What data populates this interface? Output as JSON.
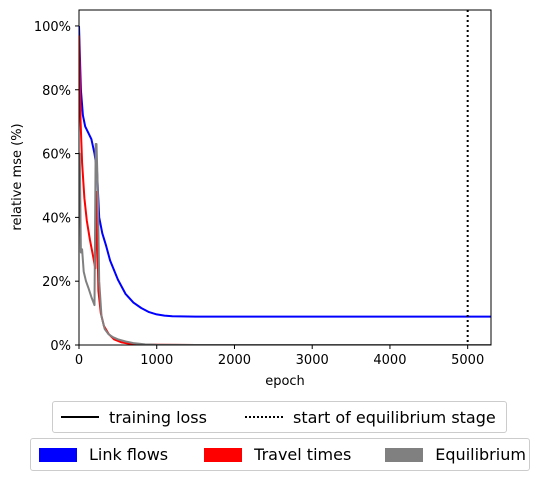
{
  "chart_data": {
    "type": "line",
    "title": "",
    "xlabel": "epoch",
    "ylabel": "relative mse (%)",
    "xlim": [
      0,
      5300
    ],
    "ylim": [
      0,
      105
    ],
    "xticks": [
      0,
      1000,
      2000,
      3000,
      4000,
      5000
    ],
    "xtick_labels": [
      "0",
      "1000",
      "2000",
      "3000",
      "4000",
      "5000"
    ],
    "yticks": [
      0,
      20,
      40,
      60,
      80,
      100
    ],
    "ytick_labels": [
      "0%",
      "20%",
      "40%",
      "60%",
      "80%",
      "100%"
    ],
    "grid": false,
    "vline": {
      "x": 5000,
      "style": "dotted",
      "color": "#000000"
    },
    "series": [
      {
        "name": "Link flows",
        "color": "#0000ff",
        "x": [
          0,
          25,
          50,
          80,
          120,
          160,
          200,
          230,
          260,
          300,
          350,
          400,
          500,
          600,
          700,
          800,
          900,
          1000,
          1100,
          1200,
          1500,
          2000,
          3000,
          4000,
          5000,
          5300
        ],
        "y": [
          100,
          80,
          72,
          68.5,
          66.5,
          64.5,
          60,
          55,
          40,
          35,
          31,
          26.5,
          20.5,
          16,
          13.3,
          11.6,
          10.3,
          9.6,
          9.2,
          9.0,
          8.9,
          8.9,
          8.9,
          8.9,
          8.9,
          8.9
        ]
      },
      {
        "name": "Travel times",
        "color": "#ff0000",
        "x": [
          0,
          20,
          40,
          70,
          100,
          140,
          180,
          210,
          225,
          250,
          280,
          320,
          380,
          450,
          550,
          650,
          800,
          1000,
          1500,
          2000,
          5300
        ],
        "y": [
          97,
          70,
          57,
          46,
          39,
          33,
          28,
          24,
          48,
          17,
          10,
          6,
          3.5,
          1.8,
          0.8,
          0.4,
          0.15,
          0.05,
          0,
          0,
          0
        ]
      },
      {
        "name": "Equilibrium",
        "color": "#808080",
        "x": [
          0,
          10,
          25,
          40,
          60,
          90,
          120,
          160,
          200,
          215,
          225,
          240,
          260,
          290,
          330,
          380,
          440,
          500,
          600,
          700,
          850,
          1000,
          1500,
          2000,
          5300
        ],
        "y": [
          45,
          60,
          29,
          30,
          23,
          20,
          18,
          15,
          12.5,
          63,
          63,
          50,
          20,
          9,
          5,
          3.4,
          2.4,
          1.8,
          1.1,
          0.6,
          0.2,
          0.05,
          0,
          0,
          0
        ]
      }
    ]
  },
  "legend": {
    "line_entries": [
      {
        "label": "training loss",
        "style": "solid"
      },
      {
        "label": "start of equilibrium stage",
        "style": "dotted"
      }
    ],
    "series_entries": [
      {
        "label": "Link flows",
        "color": "#0000ff"
      },
      {
        "label": "Travel times",
        "color": "#ff0000"
      },
      {
        "label": "Equilibrium",
        "color": "#808080"
      }
    ]
  }
}
